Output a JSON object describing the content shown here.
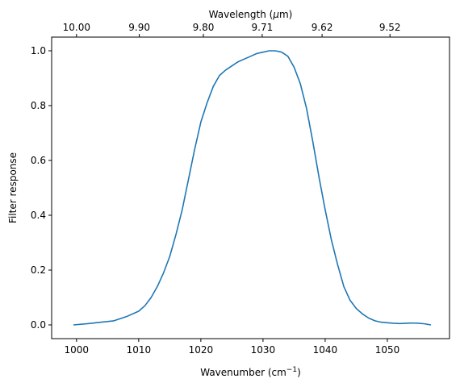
{
  "chart_data": {
    "type": "line",
    "title": "",
    "xlabel": "Wavenumber (cm",
    "xlabel_unit_power": "−1",
    "xlabel_close": ")",
    "ylabel": "Filter response",
    "top_xlabel_prefix": "Wavelength (",
    "top_xlabel_mu": "μ",
    "top_xlabel_suffix": "m)",
    "xlim": [
      996,
      1060
    ],
    "ylim": [
      -0.05,
      1.05
    ],
    "grid": false,
    "legend": "none",
    "x_ticks": [
      {
        "value": 1000,
        "label": "1000"
      },
      {
        "value": 1010,
        "label": "1010"
      },
      {
        "value": 1020,
        "label": "1020"
      },
      {
        "value": 1030,
        "label": "1030"
      },
      {
        "value": 1040,
        "label": "1040"
      },
      {
        "value": 1050,
        "label": "1050"
      }
    ],
    "y_ticks": [
      {
        "value": 0.0,
        "label": "0.0"
      },
      {
        "value": 0.2,
        "label": "0.2"
      },
      {
        "value": 0.4,
        "label": "0.4"
      },
      {
        "value": 0.6,
        "label": "0.6"
      },
      {
        "value": 0.8,
        "label": "0.8"
      },
      {
        "value": 1.0,
        "label": "1.0"
      }
    ],
    "top_ticks": [
      {
        "value": 10.0,
        "label": "10.00"
      },
      {
        "value": 9.9,
        "label": "9.90"
      },
      {
        "value": 9.8,
        "label": "9.80"
      },
      {
        "value": 9.71,
        "label": "9.71"
      },
      {
        "value": 9.62,
        "label": "9.62"
      },
      {
        "value": 9.52,
        "label": "9.52"
      }
    ],
    "series": [
      {
        "color": "#1f77b4",
        "x": [
          999.5,
          1002,
          1004,
          1006,
          1008,
          1010,
          1011,
          1012,
          1013,
          1014,
          1015,
          1016,
          1017,
          1018,
          1019,
          1020,
          1021,
          1022,
          1023,
          1024,
          1025,
          1026,
          1027,
          1028,
          1029,
          1030,
          1031,
          1032,
          1033,
          1034,
          1035,
          1036,
          1037,
          1038,
          1039,
          1040,
          1041,
          1042,
          1043,
          1044,
          1045,
          1046,
          1047,
          1048,
          1049,
          1050,
          1051,
          1052,
          1053,
          1054,
          1055,
          1056,
          1057
        ],
        "y": [
          0.0,
          0.005,
          0.01,
          0.015,
          0.03,
          0.05,
          0.07,
          0.1,
          0.14,
          0.19,
          0.25,
          0.33,
          0.42,
          0.53,
          0.64,
          0.74,
          0.81,
          0.87,
          0.91,
          0.93,
          0.945,
          0.96,
          0.97,
          0.98,
          0.99,
          0.995,
          1.0,
          1.0,
          0.995,
          0.98,
          0.94,
          0.88,
          0.79,
          0.67,
          0.54,
          0.42,
          0.31,
          0.22,
          0.14,
          0.09,
          0.06,
          0.04,
          0.025,
          0.015,
          0.01,
          0.008,
          0.006,
          0.005,
          0.006,
          0.007,
          0.006,
          0.004,
          0.0
        ]
      }
    ]
  }
}
